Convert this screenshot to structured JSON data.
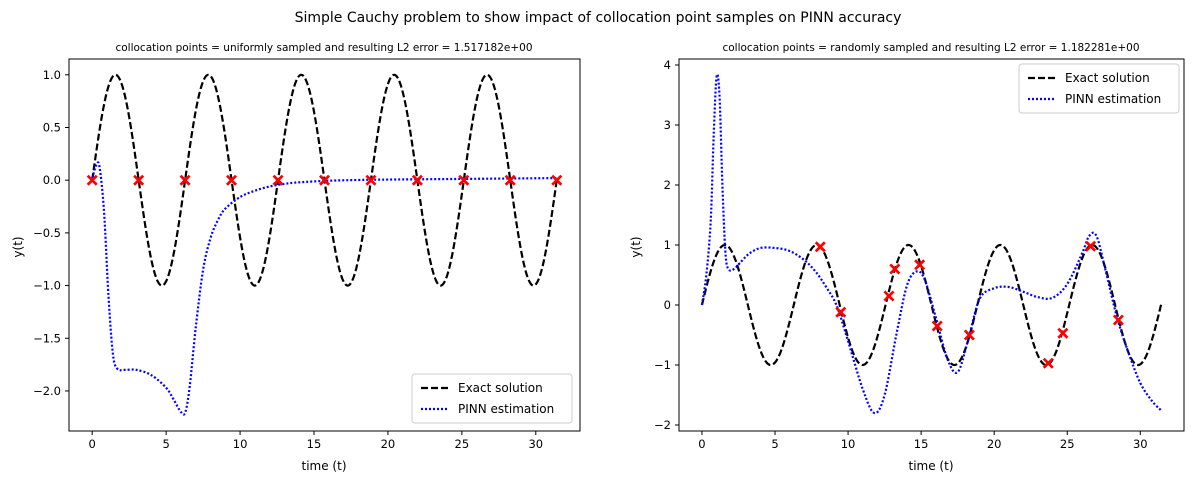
{
  "figure": {
    "suptitle": "Simple Cauchy problem to show impact of collocation point samples on PINN accuracy"
  },
  "panels": [
    {
      "title": "collocation points = uniformly sampled and resulting L2 error = 1.517182e+00",
      "xlabel": "time (t)",
      "ylabel": "y(t)",
      "legend": {
        "exact": "Exact solution",
        "pinn": "PINN estimation"
      }
    },
    {
      "title": "collocation points = randomly sampled and resulting L2 error = 1.182281e+00",
      "xlabel": "time (t)",
      "ylabel": "y(t)",
      "legend": {
        "exact": "Exact solution",
        "pinn": "PINN estimation"
      }
    }
  ],
  "chart_data": [
    {
      "type": "line",
      "title": "collocation points = uniformly sampled and resulting L2 error = 1.517182e+00",
      "xlabel": "time (t)",
      "ylabel": "y(t)",
      "xlim": [
        -1.57,
        32.99
      ],
      "ylim": [
        -2.38,
        1.15
      ],
      "xticks": [
        0,
        5,
        10,
        15,
        20,
        25,
        30
      ],
      "yticks": [
        -2.0,
        -1.5,
        -1.0,
        -0.5,
        0.0,
        0.5,
        1.0
      ],
      "ytick_labels": [
        "−2.0",
        "−1.5",
        "−1.0",
        "−0.5",
        "0.0",
        "0.5",
        "1.0"
      ],
      "legend_position": "lower-right",
      "colors": {
        "exact": "#000000",
        "pinn": "#0000ff",
        "points": "#ff0000"
      },
      "series": [
        {
          "name": "Exact solution",
          "style": "dashed",
          "color": "#000000",
          "function": "sin(t)",
          "x_range": [
            0,
            31.42
          ]
        },
        {
          "name": "PINN estimation",
          "style": "dotted",
          "color": "#0000ff",
          "points": [
            [
              0,
              0.02
            ],
            [
              0.3,
              0.15
            ],
            [
              0.5,
              0.12
            ],
            [
              0.8,
              -0.3
            ],
            [
              1.1,
              -1.1
            ],
            [
              1.4,
              -1.65
            ],
            [
              1.7,
              -1.79
            ],
            [
              2.2,
              -1.8
            ],
            [
              3,
              -1.8
            ],
            [
              4,
              -1.85
            ],
            [
              5,
              -1.97
            ],
            [
              5.5,
              -2.08
            ],
            [
              6,
              -2.2
            ],
            [
              6.3,
              -2.2
            ],
            [
              6.6,
              -1.95
            ],
            [
              7,
              -1.4
            ],
            [
              7.5,
              -0.85
            ],
            [
              8,
              -0.55
            ],
            [
              8.5,
              -0.38
            ],
            [
              9,
              -0.27
            ],
            [
              10,
              -0.16
            ],
            [
              11,
              -0.1
            ],
            [
              12,
              -0.06
            ],
            [
              13,
              -0.035
            ],
            [
              14,
              -0.02
            ],
            [
              16,
              -0.005
            ],
            [
              18,
              0.002
            ],
            [
              20,
              0.006
            ],
            [
              25,
              0.012
            ],
            [
              31.4,
              0.02
            ]
          ]
        },
        {
          "name": "collocation points",
          "style": "markers",
          "color": "#ff0000",
          "points": [
            [
              0,
              0
            ],
            [
              3.14,
              0
            ],
            [
              6.28,
              0
            ],
            [
              9.42,
              0
            ],
            [
              12.57,
              0
            ],
            [
              15.71,
              0
            ],
            [
              18.85,
              0
            ],
            [
              21.99,
              0
            ],
            [
              25.13,
              0
            ],
            [
              28.27,
              0
            ],
            [
              31.42,
              0
            ]
          ]
        }
      ]
    },
    {
      "type": "line",
      "title": "collocation points = randomly sampled and resulting L2 error = 1.182281e+00",
      "xlabel": "time (t)",
      "ylabel": "y(t)",
      "xlim": [
        -1.57,
        32.99
      ],
      "ylim": [
        -2.1,
        4.1
      ],
      "xticks": [
        0,
        5,
        10,
        15,
        20,
        25,
        30
      ],
      "yticks": [
        -2,
        -1,
        0,
        1,
        2,
        3,
        4
      ],
      "ytick_labels": [
        "−2",
        "−1",
        "0",
        "1",
        "2",
        "3",
        "4"
      ],
      "legend_position": "upper-right",
      "colors": {
        "exact": "#000000",
        "pinn": "#0000ff",
        "points": "#ff0000"
      },
      "series": [
        {
          "name": "Exact solution",
          "style": "dashed",
          "color": "#000000",
          "function": "sin(t)",
          "x_range": [
            0,
            31.42
          ]
        },
        {
          "name": "PINN estimation",
          "style": "dotted",
          "color": "#0000ff",
          "points": [
            [
              0,
              0
            ],
            [
              0.3,
              0.5
            ],
            [
              0.6,
              1.4
            ],
            [
              0.8,
              2.8
            ],
            [
              1,
              3.8
            ],
            [
              1.2,
              3.5
            ],
            [
              1.4,
              2
            ],
            [
              1.6,
              0.9
            ],
            [
              1.8,
              0.6
            ],
            [
              2.2,
              0.6
            ],
            [
              2.6,
              0.7
            ],
            [
              3.2,
              0.85
            ],
            [
              4,
              0.95
            ],
            [
              5,
              0.95
            ],
            [
              6,
              0.9
            ],
            [
              7,
              0.75
            ],
            [
              7.8,
              0.55
            ],
            [
              8.5,
              0.3
            ],
            [
              9.2,
              0
            ],
            [
              10,
              -0.6
            ],
            [
              11,
              -1.4
            ],
            [
              11.8,
              -1.8
            ],
            [
              12.5,
              -1.5
            ],
            [
              13.3,
              -0.5
            ],
            [
              14,
              0.3
            ],
            [
              14.6,
              0.55
            ],
            [
              15.2,
              0.45
            ],
            [
              16,
              -0.2
            ],
            [
              16.8,
              -0.9
            ],
            [
              17.5,
              -1.12
            ],
            [
              18.2,
              -0.6
            ],
            [
              19,
              0.1
            ],
            [
              20,
              0.28
            ],
            [
              21,
              0.3
            ],
            [
              22,
              0.22
            ],
            [
              23,
              0.13
            ],
            [
              24,
              0.12
            ],
            [
              25,
              0.35
            ],
            [
              26,
              0.85
            ],
            [
              26.5,
              1.15
            ],
            [
              27,
              1.15
            ],
            [
              27.6,
              0.6
            ],
            [
              28.4,
              -0.2
            ],
            [
              29.2,
              -0.8
            ],
            [
              30,
              -1.3
            ],
            [
              30.8,
              -1.6
            ],
            [
              31.4,
              -1.75
            ]
          ]
        },
        {
          "name": "collocation points",
          "style": "markers",
          "color": "#ff0000",
          "points": [
            [
              8.1,
              0.97
            ],
            [
              9.5,
              -0.12
            ],
            [
              12.8,
              0.15
            ],
            [
              13.2,
              0.6
            ],
            [
              14.9,
              0.67
            ],
            [
              16.1,
              -0.35
            ],
            [
              18.3,
              -0.5
            ],
            [
              23.7,
              -0.97
            ],
            [
              24.7,
              -0.47
            ],
            [
              26.6,
              0.98
            ],
            [
              28.5,
              -0.25
            ]
          ]
        }
      ]
    }
  ]
}
